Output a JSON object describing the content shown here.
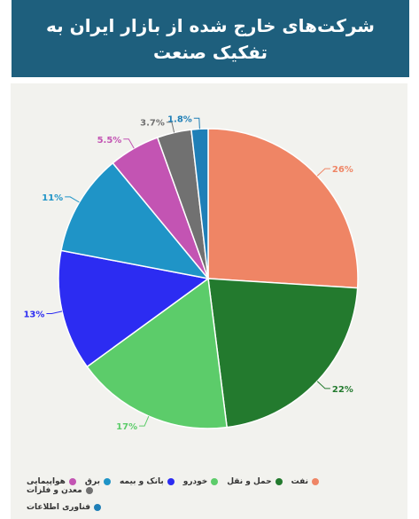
{
  "title": "شرکت‌های خارج شده از بازار ایران به تفکیک صنعت",
  "chart_data": {
    "type": "pie",
    "title": "شرکت‌های خارج شده از بازار ایران به تفکیک صنعت",
    "series": [
      {
        "name": "نفت",
        "value": 26,
        "label": "26%",
        "color": "#ef8565"
      },
      {
        "name": "حمل و نقل",
        "value": 22,
        "label": "22%",
        "color": "#237a2e"
      },
      {
        "name": "خودرو",
        "value": 17,
        "label": "17%",
        "color": "#5ccc6a"
      },
      {
        "name": "بانک و بیمه",
        "value": 13,
        "label": "13%",
        "color": "#2c2cf2"
      },
      {
        "name": "برق",
        "value": 11,
        "label": "11%",
        "color": "#1f94c7"
      },
      {
        "name": "هواپیمایی",
        "value": 5.5,
        "label": "5.5%",
        "color": "#c354b3"
      },
      {
        "name": "معدن و فلزات",
        "value": 3.7,
        "label": "3.7%",
        "color": "#717171"
      },
      {
        "name": "فناوری اطلاعات",
        "value": 1.8,
        "label": "1.8%",
        "color": "#1f7fb7"
      }
    ],
    "legend_position": "bottom"
  }
}
